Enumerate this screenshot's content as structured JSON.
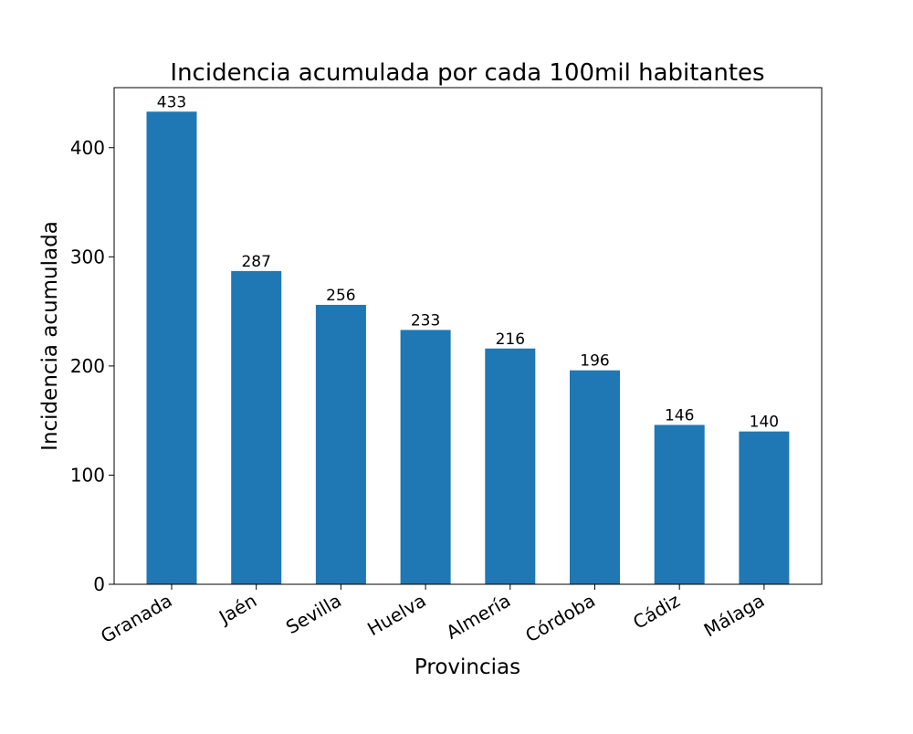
{
  "chart_data": {
    "type": "bar",
    "title": "Incidencia acumulada por cada 100mil habitantes",
    "xlabel": "Provincias",
    "ylabel": "Incidencia acumulada",
    "categories": [
      "Granada",
      "Jaén",
      "Sevilla",
      "Huelva",
      "Almería",
      "Córdoba",
      "Cádiz",
      "Málaga"
    ],
    "values": [
      433,
      287,
      256,
      233,
      216,
      196,
      146,
      140
    ],
    "data_labels": [
      "433",
      "287",
      "256",
      "233",
      "216",
      "196",
      "146",
      "140"
    ],
    "yticks": [
      0,
      100,
      200,
      300,
      400
    ],
    "ylim": [
      0,
      455
    ],
    "grid": false,
    "legend": false,
    "bar_color": "#1f77b4"
  }
}
